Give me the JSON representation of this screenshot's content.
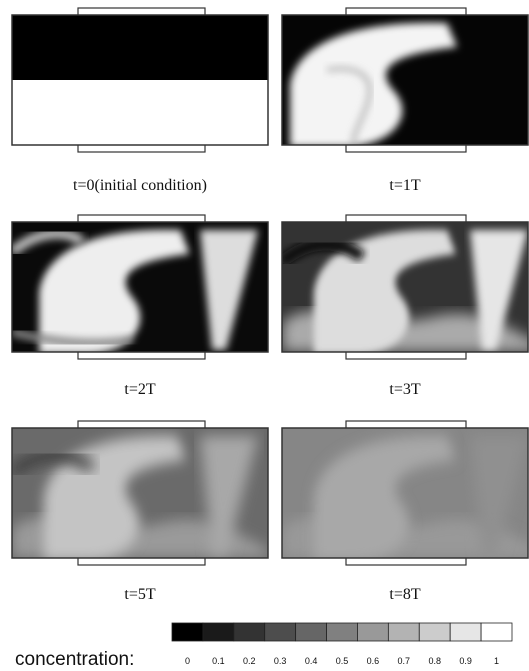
{
  "panels": [
    {
      "caption": "t=0(initial condition)"
    },
    {
      "caption": "t=1T"
    },
    {
      "caption": "t=2T"
    },
    {
      "caption": "t=3T"
    },
    {
      "caption": "t=5T"
    },
    {
      "caption": "t=8T"
    }
  ],
  "colorbar": {
    "label": "concentration:",
    "ticks": [
      0,
      0.1,
      0.2,
      0.3,
      0.4,
      0.5,
      0.6,
      0.7,
      0.8,
      0.9,
      1
    ]
  }
}
